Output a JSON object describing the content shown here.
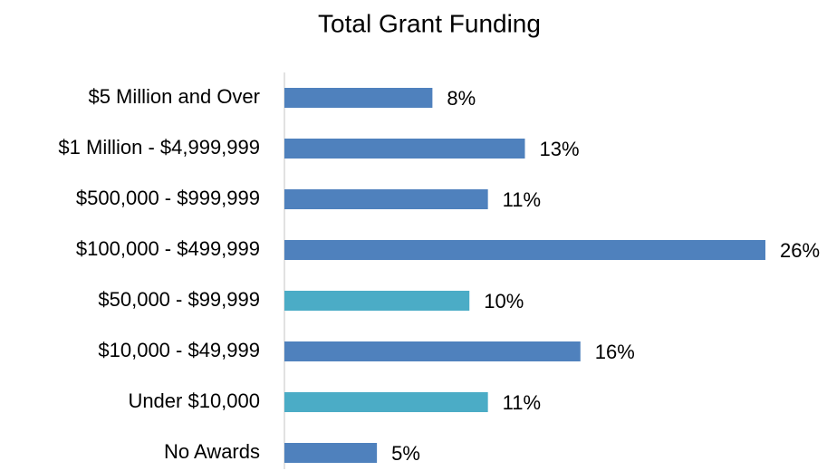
{
  "chart_data": {
    "type": "bar",
    "orientation": "horizontal",
    "title": "Total Grant Funding",
    "categories": [
      "$5 Million and Over",
      "$1 Million - $4,999,999",
      "$500,000 - $999,999",
      "$100,000 - $499,999",
      "$50,000 - $99,999",
      "$10,000 - $49,999",
      "Under $10,000",
      "No Awards"
    ],
    "values": [
      8,
      13,
      11,
      26,
      10,
      16,
      11,
      5
    ],
    "value_labels": [
      "8%",
      "13%",
      "11%",
      "26%",
      "10%",
      "16%",
      "11%",
      "5%"
    ],
    "colors": [
      "#4f81bd",
      "#4f81bd",
      "#4f81bd",
      "#4f81bd",
      "#4bacc6",
      "#4f81bd",
      "#4bacc6",
      "#4f81bd"
    ]
  }
}
